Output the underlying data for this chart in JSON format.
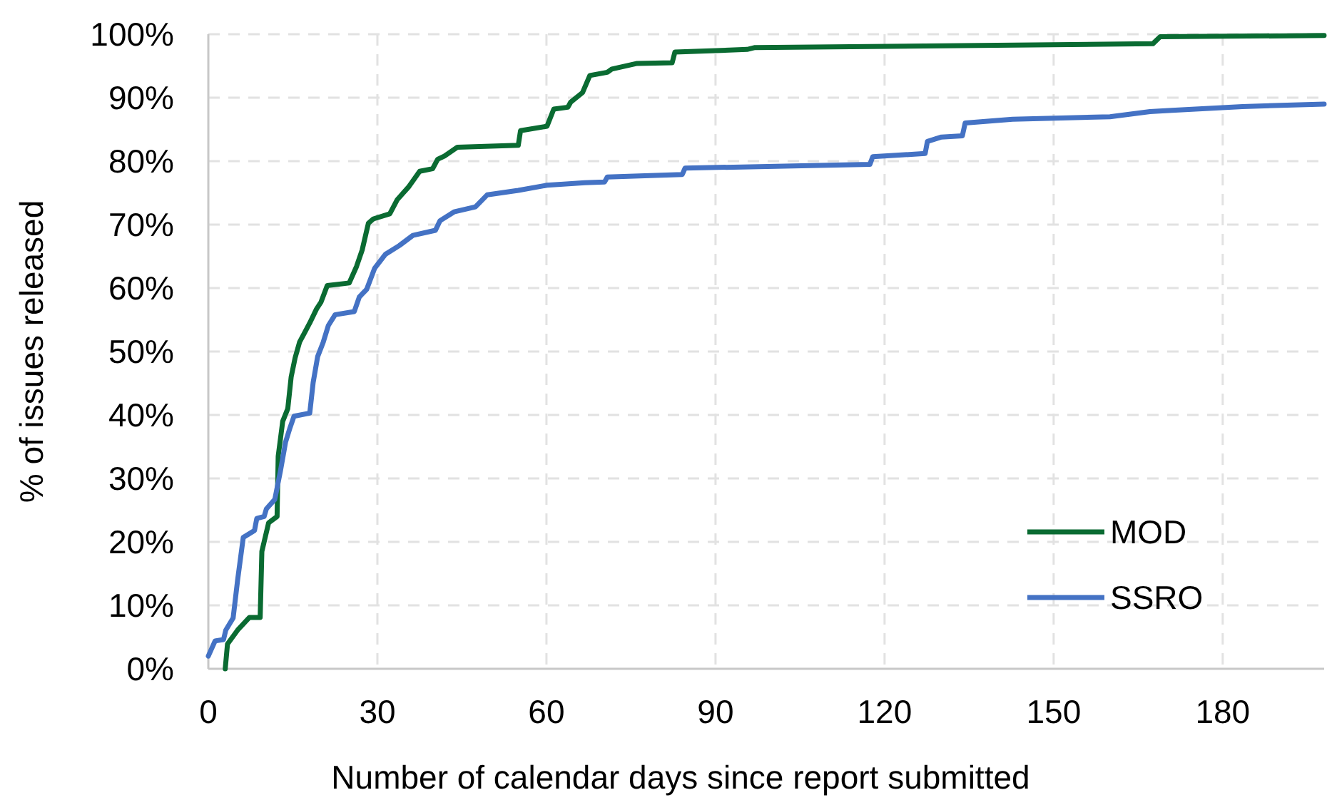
{
  "chart_data": {
    "type": "line",
    "xlabel": "Number of calendar days since report submitted",
    "ylabel": "% of issues released",
    "xlim": [
      0,
      198
    ],
    "xticks": [
      0,
      30,
      60,
      90,
      120,
      150,
      180
    ],
    "ylim": [
      0,
      100
    ],
    "yticks": [
      {
        "value": 0,
        "label": "0%"
      },
      {
        "value": 10,
        "label": "10%"
      },
      {
        "value": 20,
        "label": "20%"
      },
      {
        "value": 30,
        "label": "30%"
      },
      {
        "value": 40,
        "label": "40%"
      },
      {
        "value": 50,
        "label": "50%"
      },
      {
        "value": 60,
        "label": "60%"
      },
      {
        "value": 70,
        "label": "70%"
      },
      {
        "value": 80,
        "label": "80%"
      },
      {
        "value": 90,
        "label": "90%"
      },
      {
        "value": 100,
        "label": "100%"
      }
    ],
    "grid": true,
    "legend": "bottom right",
    "marker": "none",
    "line_style": "solid",
    "series": [
      {
        "name": "MOD",
        "color": "#0a6b32",
        "x": [
          3,
          3.4,
          5.2,
          7.3,
          9.2,
          9.5,
          10.7,
          12.2,
          12.4,
          13.2,
          14.1,
          14.7,
          15.4,
          16.2,
          17.1,
          18,
          19.2,
          20,
          21.1,
          25,
          26.3,
          27.3,
          28.4,
          29.3,
          32.2,
          33.5,
          35.6,
          37.5,
          39.8,
          40.7,
          41.9,
          44.2,
          55,
          55.4,
          60.1,
          61.3,
          63.8,
          64.3,
          66.4,
          67.7,
          70.8,
          71.6,
          76.1,
          82.3,
          82.8,
          95.6,
          97,
          167.6,
          168.9,
          198
        ],
        "values": [
          0,
          3.9,
          6.1,
          8.1,
          8.1,
          18.5,
          23,
          24,
          33.5,
          39,
          41,
          46,
          49,
          51.5,
          53,
          54.5,
          56.7,
          57.8,
          60.4,
          60.8,
          63.4,
          66,
          70.2,
          70.9,
          71.7,
          73.9,
          76,
          78.4,
          78.8,
          80.3,
          80.8,
          82.2,
          82.5,
          84.8,
          85.5,
          88.2,
          88.5,
          89.3,
          90.8,
          93.5,
          94,
          94.5,
          95.4,
          95.5,
          97.2,
          97.6,
          97.9,
          98.5,
          99.6,
          99.8
        ]
      },
      {
        "name": "SSRO",
        "color": "#4472c4",
        "x": [
          0,
          1.2,
          2.7,
          3.1,
          4.4,
          5.2,
          6.2,
          8.2,
          8.6,
          9.9,
          10.3,
          11.8,
          12.8,
          13.7,
          14.5,
          15.2,
          18,
          18.6,
          19.4,
          20.4,
          21.3,
          22.5,
          25.9,
          26.8,
          28.1,
          29.5,
          31.4,
          33.9,
          36.3,
          40.3,
          41.1,
          43.6,
          47.4,
          49.5,
          55,
          60.1,
          66.8,
          70.3,
          70.8,
          84.1,
          84.6,
          117.4,
          117.9,
          127.2,
          127.6,
          130.1,
          133.8,
          134.3,
          142.7,
          160,
          167.1,
          171,
          183.5,
          198
        ],
        "values": [
          2,
          4.4,
          4.6,
          6.1,
          8,
          14,
          20.7,
          21.8,
          23.7,
          24,
          25.2,
          26.7,
          31.2,
          35.7,
          38,
          39.8,
          40.3,
          45.1,
          49.2,
          51.5,
          54.1,
          55.8,
          56.3,
          58.6,
          59.8,
          63.1,
          65.3,
          66.7,
          68.3,
          69.1,
          70.6,
          72,
          72.8,
          74.7,
          75.4,
          76.2,
          76.6,
          76.7,
          77.5,
          77.9,
          78.9,
          79.5,
          80.7,
          81.2,
          83.1,
          83.8,
          84,
          86,
          86.6,
          87,
          87.8,
          88,
          88.6,
          89
        ]
      }
    ]
  }
}
